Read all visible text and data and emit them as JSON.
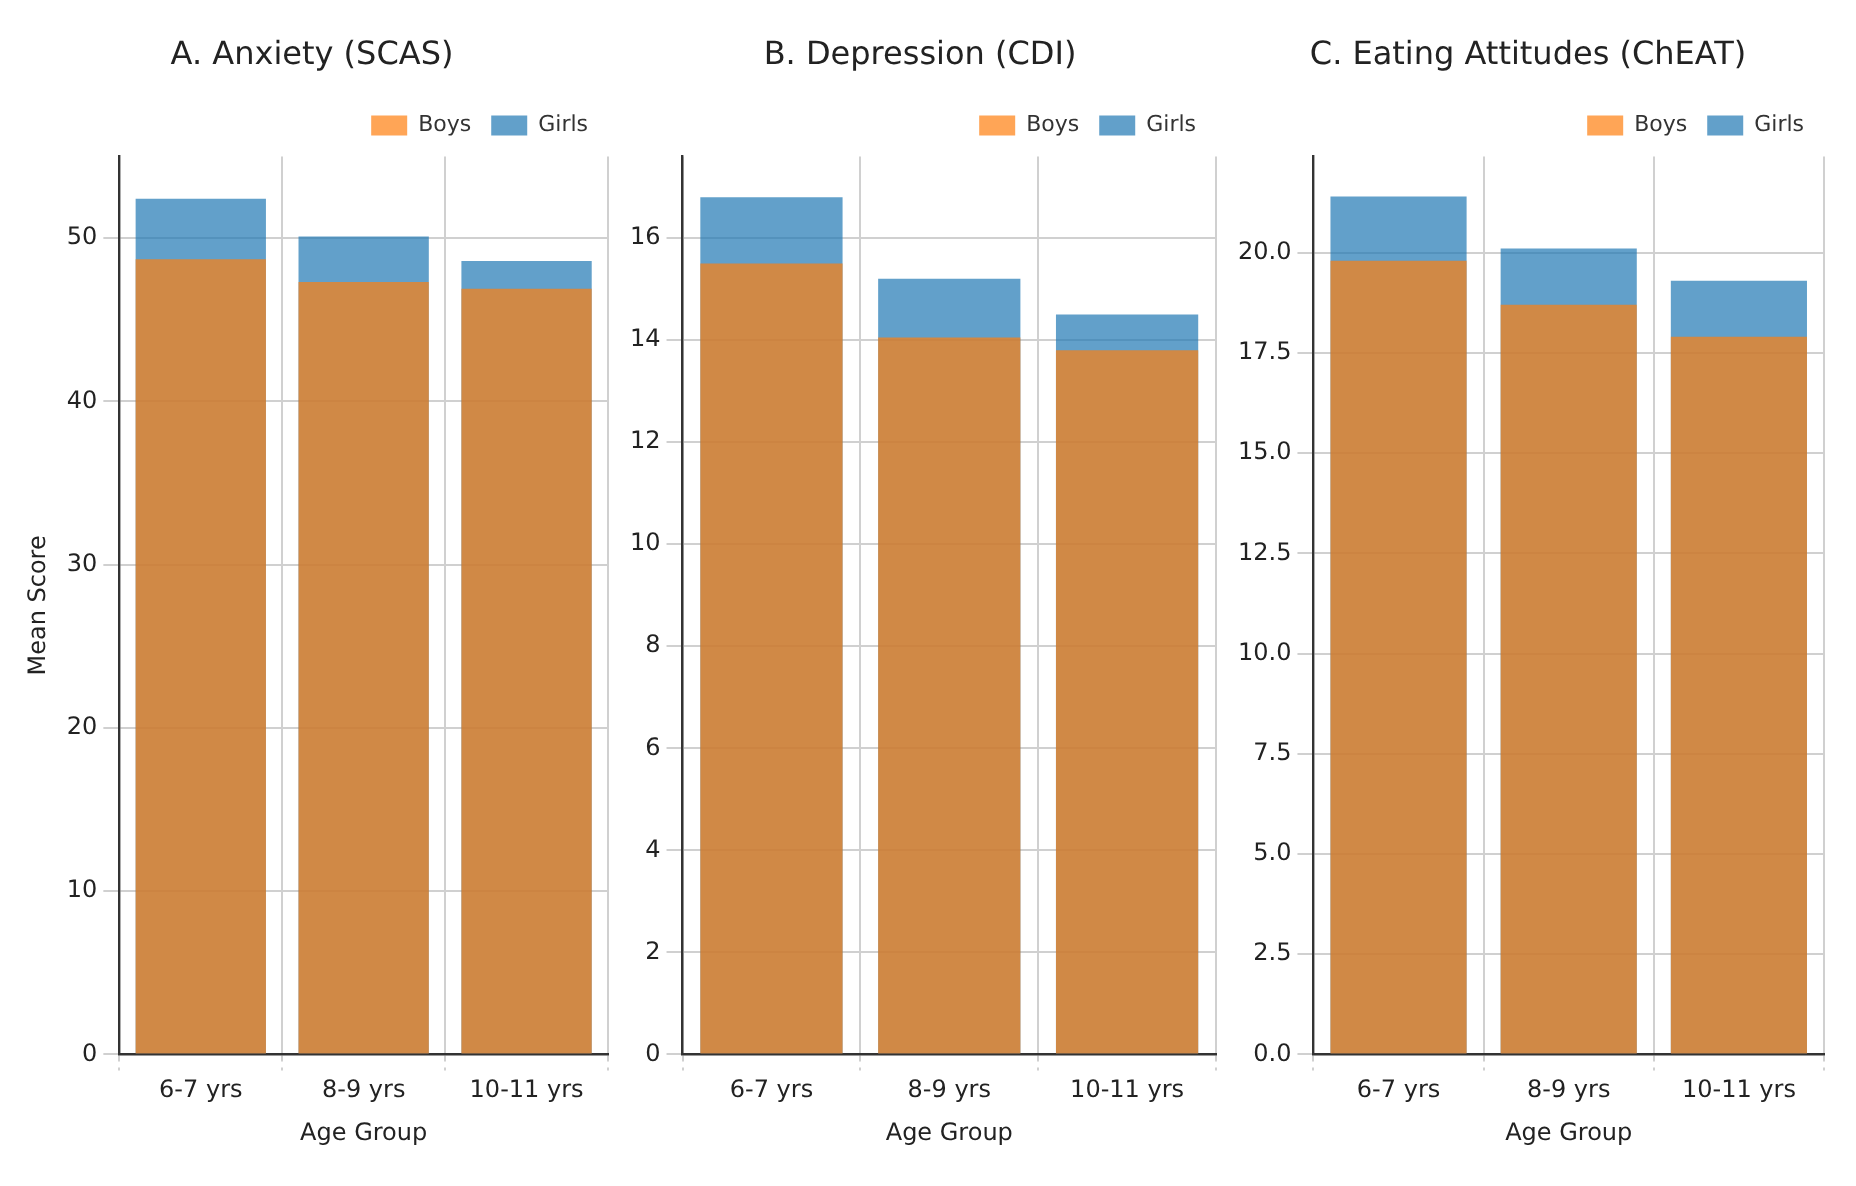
{
  "chart_data": [
    {
      "type": "bar",
      "title": "A. Anxiety (SCAS)",
      "xlabel": "Age Group",
      "ylabel": "Mean Score",
      "categories": [
        "6-7 yrs",
        "8-9 yrs",
        "10-11 yrs"
      ],
      "series": [
        {
          "name": "Girls",
          "color": "#1f77b4",
          "values": [
            52.4,
            50.1,
            48.6
          ]
        },
        {
          "name": "Boys",
          "color": "#ff7f0e",
          "values": [
            48.7,
            47.3,
            46.9
          ]
        }
      ],
      "ylim": [
        0,
        55
      ],
      "yticks": [
        0,
        10,
        20,
        30,
        40,
        50
      ],
      "grid": true,
      "legend": "top right"
    },
    {
      "type": "bar",
      "title": "B. Depression (CDI)",
      "xlabel": "Age Group",
      "categories": [
        "6-7 yrs",
        "8-9 yrs",
        "10-11 yrs"
      ],
      "series": [
        {
          "name": "Girls",
          "color": "#1f77b4",
          "values": [
            16.8,
            15.2,
            14.5
          ]
        },
        {
          "name": "Boys",
          "color": "#ff7f0e",
          "values": [
            15.5,
            14.05,
            13.8
          ]
        }
      ],
      "ylim": [
        0,
        17.6
      ],
      "yticks": [
        0,
        2,
        4,
        6,
        8,
        10,
        12,
        14,
        16
      ],
      "grid": true,
      "legend": "top right"
    },
    {
      "type": "bar",
      "title": "C. Eating Attitudes (ChEAT)",
      "xlabel": "Age Group",
      "categories": [
        "6-7 yrs",
        "8-9 yrs",
        "10-11 yrs"
      ],
      "series": [
        {
          "name": "Girls",
          "color": "#1f77b4",
          "values": [
            21.4,
            20.1,
            19.3
          ]
        },
        {
          "name": "Boys",
          "color": "#ff7f0e",
          "values": [
            19.8,
            18.7,
            17.9
          ]
        }
      ],
      "ylim": [
        0,
        22.4
      ],
      "yticks": [
        {
          "value": 0,
          "label": "0.0"
        },
        {
          "value": 2.5,
          "label": "2.5"
        },
        {
          "value": 5,
          "label": "5.0"
        },
        {
          "value": 7.5,
          "label": "7.5"
        },
        {
          "value": 10,
          "label": "10.0"
        },
        {
          "value": 12.5,
          "label": "12.5"
        },
        {
          "value": 15,
          "label": "15.0"
        },
        {
          "value": 17.5,
          "label": "17.5"
        },
        {
          "value": 20,
          "label": "20.0"
        }
      ],
      "grid": true,
      "legend": "top right"
    }
  ]
}
